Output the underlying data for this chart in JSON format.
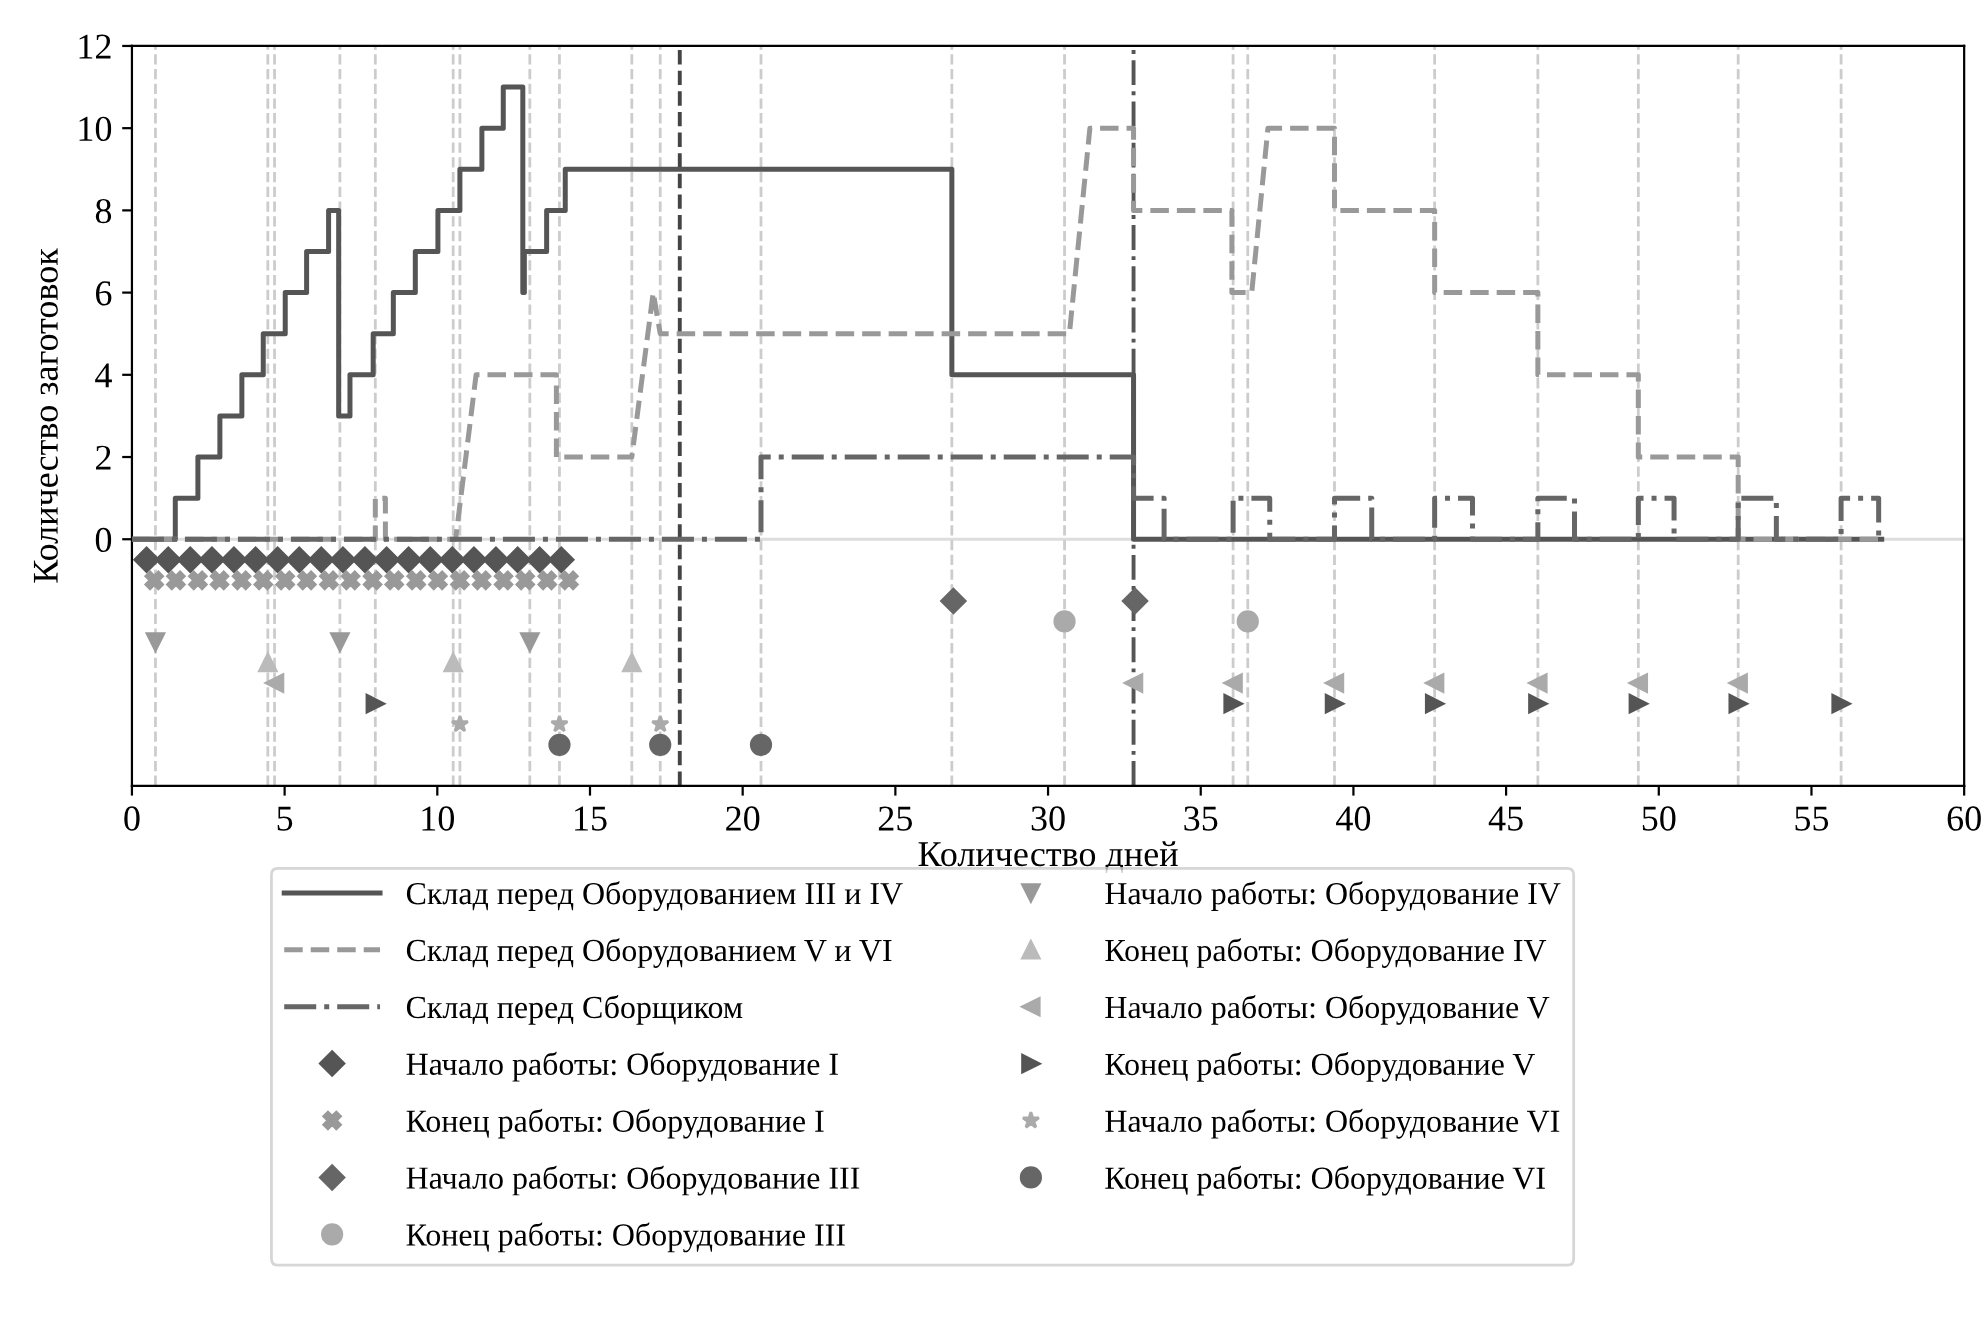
{
  "chart_data": {
    "type": "line",
    "xlabel": "Количество дней",
    "ylabel": "Количество заготовок",
    "xlim": [
      0,
      60
    ],
    "xticks": [
      0,
      5,
      10,
      15,
      20,
      25,
      30,
      35,
      40,
      45,
      50,
      55,
      60
    ],
    "ylim": [
      -6,
      12
    ],
    "yticks": [
      0,
      2,
      4,
      6,
      8,
      10,
      12
    ],
    "grid": false,
    "legend": "bottom",
    "series": [
      {
        "name": "Склад перед Оборудованием III и IV",
        "line_style": "solid",
        "color": "#555555",
        "x": [
          0,
          1.42,
          1.42,
          2.16,
          2.16,
          2.88,
          2.88,
          3.6,
          3.6,
          4.3,
          4.3,
          5.02,
          5.02,
          5.72,
          5.72,
          6.44,
          6.44,
          6.77,
          6.77,
          7.14,
          7.14,
          7.9,
          7.9,
          8.56,
          8.56,
          9.28,
          9.28,
          10.02,
          10.02,
          10.74,
          10.74,
          11.46,
          11.46,
          12.16,
          12.16,
          12.8,
          12.8,
          12.85,
          12.85,
          13.58,
          13.58,
          14.19,
          14.19,
          26.85,
          26.85,
          32.8,
          32.8,
          57.3
        ],
        "values": [
          0,
          0,
          1,
          1,
          2,
          2,
          3,
          3,
          4,
          4,
          5,
          5,
          6,
          6,
          7,
          7,
          8,
          8,
          3,
          3,
          4,
          4,
          5,
          5,
          6,
          6,
          7,
          7,
          8,
          8,
          9,
          9,
          10,
          10,
          11,
          11,
          6,
          6,
          7,
          7,
          8,
          8,
          9,
          9,
          4,
          4,
          0,
          0
        ]
      },
      {
        "name": "Склад перед Оборудованием V и VI",
        "line_style": "dashed",
        "color": "#999999",
        "x": [
          0,
          7.97,
          7.97,
          8.3,
          8.3,
          10.6,
          11.27,
          13.9,
          13.9,
          16.37,
          17.07,
          17.3,
          30.7,
          31.37,
          32.8,
          32.8,
          36.02,
          36.02,
          36.67,
          37.2,
          39.38,
          39.38,
          42.66,
          42.66,
          46.04,
          46.04,
          49.33,
          49.33,
          52.6,
          52.6,
          57.3
        ],
        "values": [
          0,
          0,
          1,
          1,
          0,
          0,
          4,
          4,
          2,
          2,
          6,
          5,
          5,
          10,
          10,
          8,
          8,
          6,
          6,
          10,
          10,
          8,
          8,
          6,
          6,
          4,
          4,
          2,
          2,
          0,
          0
        ]
      },
      {
        "name": "Склад перед Сборщиком",
        "line_style": "dashdot",
        "color": "#666666",
        "x": [
          0,
          20.6,
          20.6,
          32.8,
          32.8,
          33.8,
          33.8,
          36.06,
          36.06,
          37.26,
          37.26,
          39.38,
          39.38,
          40.6,
          40.6,
          42.66,
          42.66,
          43.9,
          43.9,
          46.04,
          46.04,
          47.24,
          47.24,
          49.33,
          49.33,
          50.5,
          50.5,
          52.6,
          52.6,
          53.85,
          53.85,
          55.97,
          55.97,
          57.2,
          57.2
        ],
        "values": [
          0,
          0,
          2,
          2,
          1,
          1,
          0,
          0,
          1,
          1,
          0,
          0,
          1,
          1,
          0,
          0,
          1,
          1,
          0,
          0,
          1,
          1,
          0,
          0,
          1,
          1,
          0,
          0,
          1,
          1,
          0,
          0,
          1,
          1,
          0
        ]
      },
      {
        "name": "Начало работы: Оборудование I",
        "type": "scatter",
        "marker": "diamond",
        "color": "#555555",
        "x": [
          0.48,
          1.19,
          1.91,
          2.62,
          3.34,
          4.05,
          4.77,
          5.48,
          6.2,
          6.91,
          7.63,
          8.34,
          9.06,
          9.77,
          10.49,
          11.2,
          11.92,
          12.63,
          13.35,
          14.06
        ],
        "values": [
          -0.5,
          -0.5,
          -0.5,
          -0.5,
          -0.5,
          -0.5,
          -0.5,
          -0.5,
          -0.5,
          -0.5,
          -0.5,
          -0.5,
          -0.5,
          -0.5,
          -0.5,
          -0.5,
          -0.5,
          -0.5,
          -0.5,
          -0.5
        ]
      },
      {
        "name": "Конец работы: Оборудование I",
        "type": "scatter",
        "marker": "cross",
        "color": "#999999",
        "x": [
          0.73,
          1.44,
          2.16,
          2.87,
          3.59,
          4.3,
          5.02,
          5.73,
          6.45,
          7.16,
          7.88,
          8.59,
          9.31,
          10.02,
          10.74,
          11.45,
          12.17,
          12.88,
          13.6,
          14.31
        ],
        "values": [
          -1,
          -1,
          -1,
          -1,
          -1,
          -1,
          -1,
          -1,
          -1,
          -1,
          -1,
          -1,
          -1,
          -1,
          -1,
          -1,
          -1,
          -1,
          -1,
          -1
        ]
      },
      {
        "name": "Начало работы: Оборудование III",
        "type": "scatter",
        "marker": "diamond",
        "color": "#666666",
        "x": [
          26.9,
          32.85
        ],
        "values": [
          -1.5,
          -1.5
        ]
      },
      {
        "name": "Конец работы: Оборудование III",
        "type": "scatter",
        "marker": "circle",
        "color": "#aaaaaa",
        "x": [
          30.54,
          36.54
        ],
        "values": [
          -2,
          -2
        ]
      },
      {
        "name": "Начало работы: Оборудование IV",
        "type": "scatter",
        "marker": "triangle_down",
        "color": "#999999",
        "x": [
          0.77,
          6.81,
          13.03
        ],
        "values": [
          -2.5,
          -2.5,
          -2.5
        ]
      },
      {
        "name": "Конец работы: Оборудование IV",
        "type": "scatter",
        "marker": "triangle_up",
        "color": "#bbbbbb",
        "x": [
          4.45,
          10.52,
          16.37
        ],
        "values": [
          -3,
          -3,
          -3
        ]
      },
      {
        "name": "Начало работы: Оборудование V",
        "type": "scatter",
        "marker": "triangle_left",
        "color": "#aaaaaa",
        "x": [
          4.67,
          32.8,
          36.06,
          39.38,
          42.66,
          46.04,
          49.33,
          52.6
        ],
        "values": [
          -3.5,
          -3.5,
          -3.5,
          -3.5,
          -3.5,
          -3.5,
          -3.5,
          -3.5
        ]
      },
      {
        "name": "Конец работы: Оборудование V",
        "type": "scatter",
        "marker": "triangle_right",
        "color": "#555555",
        "x": [
          7.97,
          36.06,
          39.38,
          42.66,
          46.04,
          49.33,
          52.6,
          55.97
        ],
        "values": [
          -4,
          -4,
          -4,
          -4,
          -4,
          -4,
          -4,
          -4
        ]
      },
      {
        "name": "Начало работы: Оборудование VI",
        "type": "scatter",
        "marker": "star",
        "color": "#aaaaaa",
        "x": [
          10.74,
          14.0,
          17.3
        ],
        "values": [
          -4.5,
          -4.5,
          -4.5
        ]
      },
      {
        "name": "Конец работы: Оборудование VI",
        "type": "scatter",
        "marker": "circle",
        "color": "#666666",
        "x": [
          14.0,
          17.3,
          20.6
        ],
        "values": [
          -5,
          -5,
          -5
        ]
      }
    ],
    "ref_lines": [
      {
        "axis": "y",
        "value": 0,
        "color": "#dddddd",
        "line_style": "solid"
      },
      {
        "axis": "x",
        "value": 0.77,
        "color": "#cccccc",
        "line_style": "dashed"
      },
      {
        "axis": "x",
        "value": 4.45,
        "color": "#cccccc",
        "line_style": "dashed"
      },
      {
        "axis": "x",
        "value": 4.67,
        "color": "#cccccc",
        "line_style": "dashed"
      },
      {
        "axis": "x",
        "value": 6.81,
        "color": "#cccccc",
        "line_style": "dashed"
      },
      {
        "axis": "x",
        "value": 7.97,
        "color": "#cccccc",
        "line_style": "dashed"
      },
      {
        "axis": "x",
        "value": 10.52,
        "color": "#cccccc",
        "line_style": "dashed"
      },
      {
        "axis": "x",
        "value": 10.74,
        "color": "#cccccc",
        "line_style": "dashed"
      },
      {
        "axis": "x",
        "value": 13.03,
        "color": "#cccccc",
        "line_style": "dashed"
      },
      {
        "axis": "x",
        "value": 14.0,
        "color": "#cccccc",
        "line_style": "dashed"
      },
      {
        "axis": "x",
        "value": 16.37,
        "color": "#cccccc",
        "line_style": "dashed"
      },
      {
        "axis": "x",
        "value": 17.3,
        "color": "#cccccc",
        "line_style": "dashed"
      },
      {
        "axis": "x",
        "value": 20.6,
        "color": "#cccccc",
        "line_style": "dashed"
      },
      {
        "axis": "x",
        "value": 26.85,
        "color": "#cccccc",
        "line_style": "dashed"
      },
      {
        "axis": "x",
        "value": 30.54,
        "color": "#cccccc",
        "line_style": "dashed"
      },
      {
        "axis": "x",
        "value": 36.06,
        "color": "#cccccc",
        "line_style": "dashed"
      },
      {
        "axis": "x",
        "value": 36.54,
        "color": "#cccccc",
        "line_style": "dashed"
      },
      {
        "axis": "x",
        "value": 39.38,
        "color": "#cccccc",
        "line_style": "dashed"
      },
      {
        "axis": "x",
        "value": 42.66,
        "color": "#cccccc",
        "line_style": "dashed"
      },
      {
        "axis": "x",
        "value": 46.04,
        "color": "#cccccc",
        "line_style": "dashed"
      },
      {
        "axis": "x",
        "value": 49.33,
        "color": "#cccccc",
        "line_style": "dashed"
      },
      {
        "axis": "x",
        "value": 52.6,
        "color": "#cccccc",
        "line_style": "dashed"
      },
      {
        "axis": "x",
        "value": 55.97,
        "color": "#cccccc",
        "line_style": "dashed"
      },
      {
        "axis": "x",
        "value": 17.94,
        "color": "#444444",
        "line_style": "dashed"
      },
      {
        "axis": "x",
        "value": 32.8,
        "color": "#555555",
        "line_style": "dashdot"
      }
    ]
  }
}
